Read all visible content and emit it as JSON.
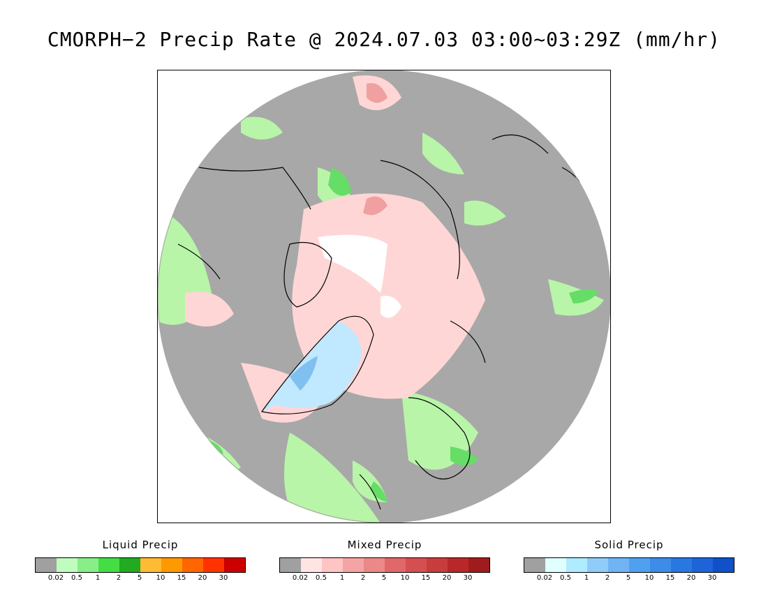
{
  "title": "CMORPH−2 Precip Rate @ 2024.07.03 03:00~03:29Z (mm/hr)",
  "map": {
    "colors": {
      "background_gray": "#a8a8a8",
      "land_outline": "#000000",
      "liquid_light": "#b8f5a8",
      "liquid_mid": "#88e878",
      "liquid_strong": "#44d844",
      "mixed_light": "#ffd6d6",
      "mixed_mid": "#f0a0a0",
      "solid_light": "#c0e8ff",
      "solid_mid": "#80c0f0",
      "no_data": "#ffffff"
    }
  },
  "legends": [
    {
      "title": "Liquid Precip",
      "colors": [
        "#a0a0a0",
        "#c0fcc0",
        "#88ee88",
        "#44dd44",
        "#22aa22",
        "#ffbb33",
        "#ff9900",
        "#ff6600",
        "#ff3300",
        "#cc0000"
      ],
      "ticks": [
        "0.02",
        "0.5",
        "1",
        "2",
        "5",
        "10",
        "15",
        "20",
        "30"
      ]
    },
    {
      "title": "Mixed Precip",
      "colors": [
        "#a0a0a0",
        "#ffe4e4",
        "#ffc4c4",
        "#f4a4a4",
        "#ec8888",
        "#e06868",
        "#d45050",
        "#c83c3c",
        "#b82828",
        "#a01c1c"
      ],
      "ticks": [
        "0.02",
        "0.5",
        "1",
        "2",
        "5",
        "10",
        "15",
        "20",
        "30"
      ]
    },
    {
      "title": "Solid Precip",
      "colors": [
        "#a0a0a0",
        "#e0ffff",
        "#b0ecff",
        "#90ccf8",
        "#70b4f4",
        "#50a0f0",
        "#3c8ce8",
        "#2878e0",
        "#1c64d8",
        "#1050c8"
      ],
      "ticks": [
        "0.02",
        "0.5",
        "1",
        "2",
        "5",
        "10",
        "15",
        "20",
        "30"
      ]
    }
  ]
}
